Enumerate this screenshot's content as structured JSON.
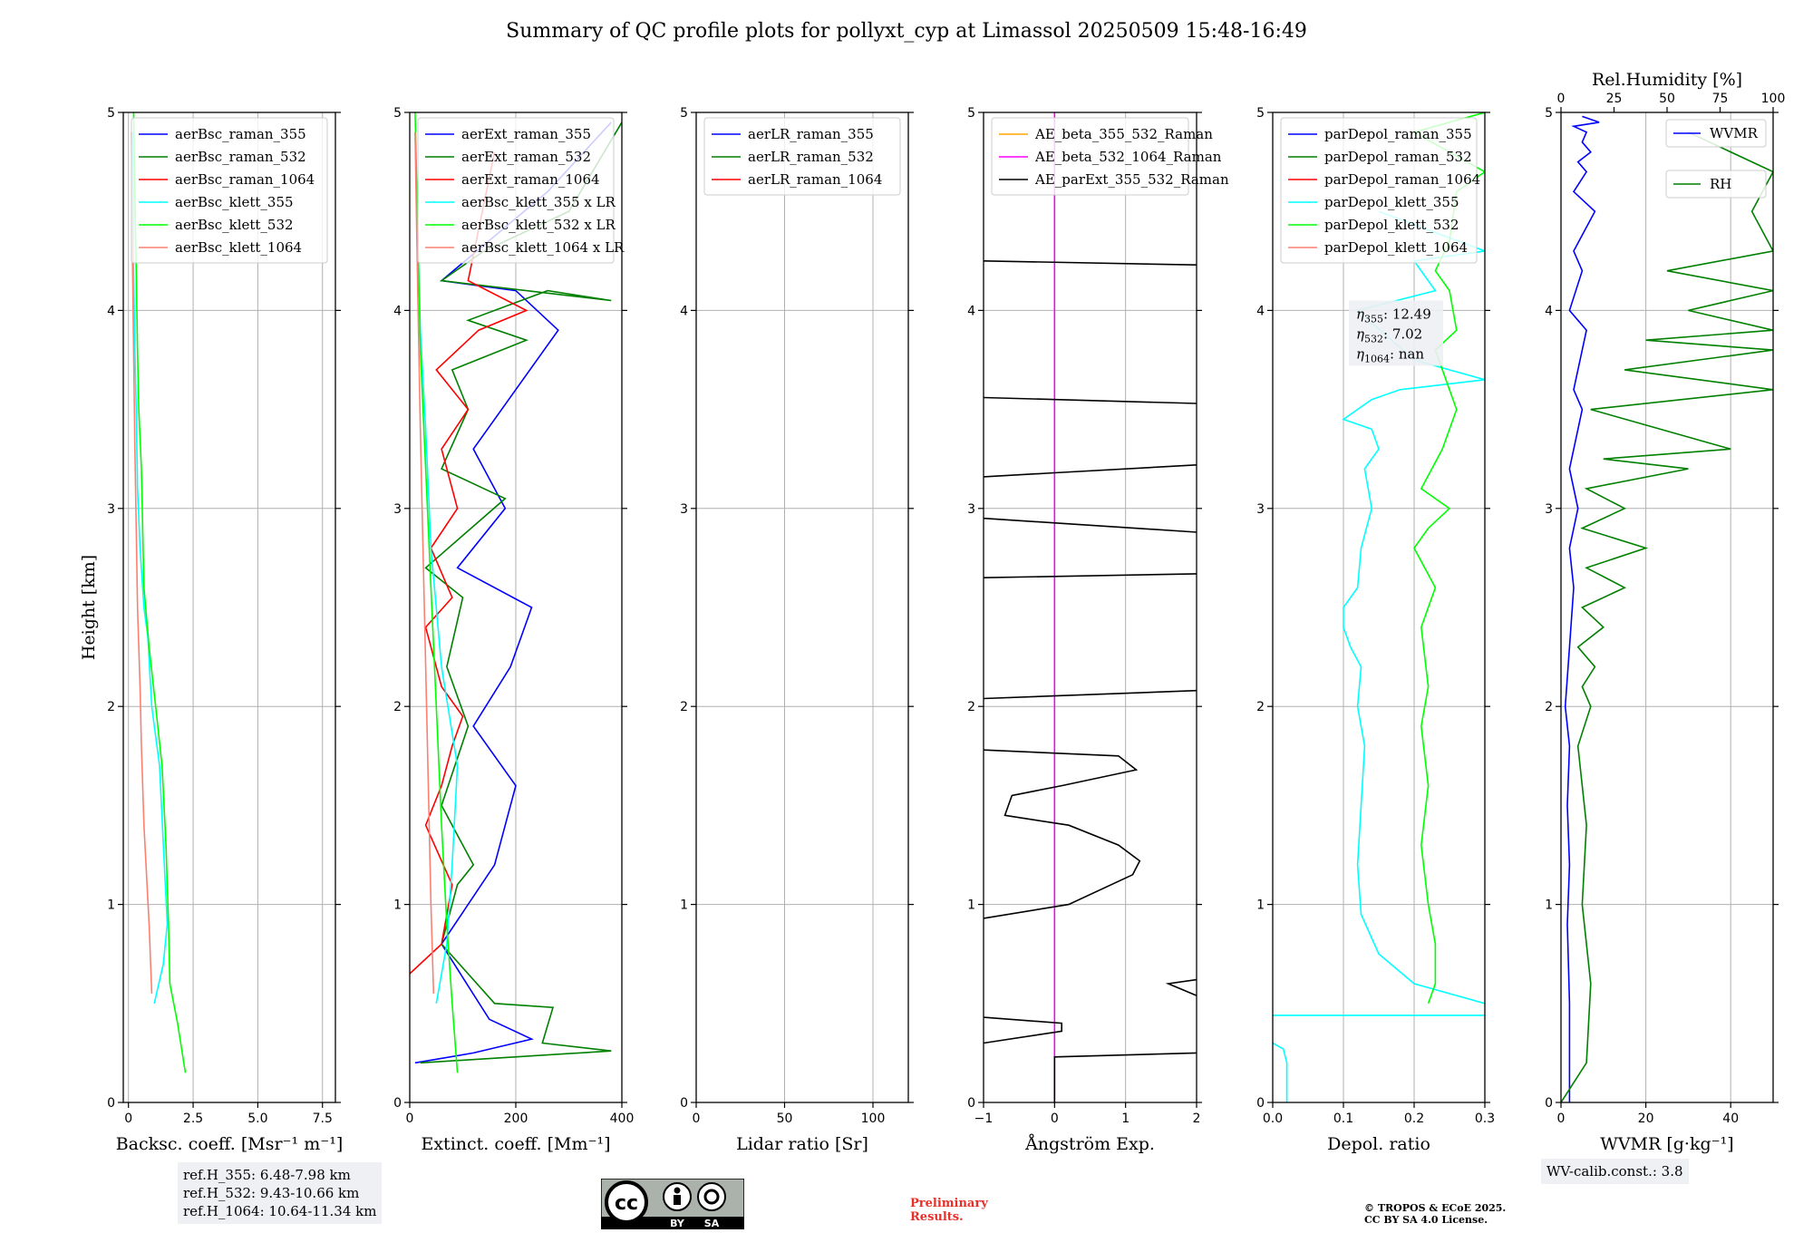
{
  "title": "Summary of QC profile plots for pollyxt_cyp at Limassol 20250509 15:48-16:49",
  "ylabel": "Height [km]",
  "info": {
    "ref_lines": [
      "ref.H_355: 6.48-7.98 km",
      "ref.H_532: 9.43-10.66 km",
      "ref.H_1064: 10.64-11.34 km"
    ],
    "wv_calib": "WV-calib.const.: 3.8",
    "preliminary": [
      "Preliminary",
      "Results."
    ],
    "copyright": [
      "© TROPOS & ECoE 2025.",
      "CC BY SA 4.0 License."
    ],
    "cc_labels": [
      "cc",
      "BY",
      "SA"
    ],
    "colors": {
      "blue": "#0000ff",
      "green": "#008000",
      "red": "#ff0000",
      "cyan": "#00ffff",
      "lime": "#00ff00",
      "salmon": "#fa8072",
      "orange": "#ffa500",
      "magenta": "#ff00ff",
      "black": "#000000"
    }
  },
  "chart_data": [
    {
      "type": "line",
      "id": "bsc",
      "xlabel": "Backsc. coeff. [Msr⁻¹ m⁻¹]",
      "xlim": [
        -0.2,
        8
      ],
      "xticks": [
        0,
        2.5,
        5,
        7.5
      ],
      "xticklabels": [
        "0",
        "2.5",
        "5.0",
        "7.5"
      ],
      "ylim": [
        0,
        5
      ],
      "yticks": [
        0,
        1,
        2,
        3,
        4,
        5
      ],
      "legend": "upper-right",
      "series": [
        {
          "name": "aerBsc_raman_355",
          "color": "blue",
          "x": [],
          "y": []
        },
        {
          "name": "aerBsc_raman_532",
          "color": "green",
          "x": [],
          "y": []
        },
        {
          "name": "aerBsc_raman_1064",
          "color": "red",
          "x": [],
          "y": []
        },
        {
          "name": "aerBsc_klett_355",
          "color": "cyan",
          "x": [
            1.0,
            1.35,
            1.5,
            1.35,
            1.2,
            0.9,
            0.75,
            0.6,
            0.45,
            0.35,
            0.3,
            0.25,
            0.2,
            0.2,
            0.15
          ],
          "y": [
            0.5,
            0.7,
            0.9,
            1.3,
            1.7,
            2.0,
            2.35,
            2.5,
            2.8,
            3.1,
            3.5,
            3.8,
            4.2,
            4.6,
            4.9
          ]
        },
        {
          "name": "aerBsc_klett_532",
          "color": "lime",
          "x": [
            2.2,
            1.9,
            1.6,
            1.55,
            1.45,
            1.3,
            1.05,
            0.8,
            0.6,
            0.55,
            0.5,
            0.4,
            0.35,
            0.3,
            0.25,
            0.2
          ],
          "y": [
            0.15,
            0.4,
            0.6,
            0.9,
            1.3,
            1.7,
            2.0,
            2.3,
            2.6,
            2.9,
            3.2,
            3.5,
            3.8,
            4.2,
            4.6,
            5.0
          ]
        },
        {
          "name": "aerBsc_klett_1064",
          "color": "salmon",
          "x": [
            0.9,
            0.8,
            0.6,
            0.5,
            0.45,
            0.35,
            0.3,
            0.25,
            0.2,
            0.15,
            0.12
          ],
          "y": [
            0.55,
            0.9,
            1.4,
            1.8,
            2.1,
            2.5,
            2.9,
            3.3,
            3.8,
            4.3,
            4.9
          ]
        }
      ]
    },
    {
      "type": "line",
      "id": "ext",
      "xlabel": "Extinct. coeff. [Mm⁻¹]",
      "xlim": [
        0,
        400
      ],
      "xticks": [
        0,
        200,
        400
      ],
      "xticklabels": [
        "0",
        "200",
        "400"
      ],
      "ylim": [
        0,
        5
      ],
      "yticks": [
        0,
        1,
        2,
        3,
        4,
        5
      ],
      "legend": "upper-right",
      "series": [
        {
          "name": "aerExt_raman_355",
          "color": "blue",
          "x": [
            10,
            120,
            230,
            150,
            60,
            110,
            160,
            200,
            120,
            190,
            230,
            90,
            180,
            120,
            280,
            200,
            60,
            260,
            380
          ],
          "y": [
            0.2,
            0.25,
            0.32,
            0.42,
            0.8,
            1.0,
            1.2,
            1.6,
            1.9,
            2.2,
            2.5,
            2.7,
            3.0,
            3.3,
            3.9,
            4.1,
            4.15,
            4.6,
            4.95
          ]
        },
        {
          "name": "aerExt_raman_532",
          "color": "green",
          "x": [
            20,
            380,
            250,
            270,
            160,
            60,
            90,
            120,
            60,
            110,
            70,
            100,
            30,
            180,
            60,
            110,
            80,
            220,
            110,
            260,
            380,
            60,
            140,
            300,
            400
          ],
          "y": [
            0.2,
            0.26,
            0.3,
            0.48,
            0.5,
            0.8,
            1.1,
            1.2,
            1.5,
            1.9,
            2.2,
            2.55,
            2.7,
            3.05,
            3.2,
            3.5,
            3.7,
            3.85,
            3.95,
            4.1,
            4.05,
            4.15,
            4.3,
            4.5,
            4.95
          ]
        },
        {
          "name": "aerExt_raman_1064",
          "color": "red",
          "x": [
            0,
            60,
            80,
            30,
            60,
            80,
            100,
            60,
            30,
            80,
            40,
            90,
            60,
            110,
            50,
            130,
            220,
            110,
            160
          ],
          "y": [
            0.65,
            0.8,
            1.1,
            1.4,
            1.6,
            1.8,
            1.95,
            2.1,
            2.4,
            2.55,
            2.8,
            3.0,
            3.3,
            3.5,
            3.7,
            3.9,
            4.0,
            4.15,
            4.8
          ]
        },
        {
          "name": "aerBsc_klett_355 x LR",
          "color": "cyan",
          "x": [
            50,
            70,
            80,
            90,
            60,
            40,
            30,
            20,
            15,
            10
          ],
          "y": [
            0.5,
            0.8,
            1.2,
            1.7,
            2.2,
            2.8,
            3.4,
            3.9,
            4.4,
            4.9
          ]
        },
        {
          "name": "aerBsc_klett_532 x LR",
          "color": "lime",
          "x": [
            90,
            80,
            70,
            60,
            50,
            40,
            30,
            20,
            15,
            10
          ],
          "y": [
            0.15,
            0.5,
            0.9,
            1.4,
            2.0,
            2.6,
            3.2,
            3.8,
            4.4,
            5.0
          ]
        },
        {
          "name": "aerBsc_klett_1064 x LR",
          "color": "salmon",
          "x": [
            45,
            40,
            35,
            30,
            25,
            20,
            15,
            10
          ],
          "y": [
            0.55,
            1.0,
            1.6,
            2.2,
            2.8,
            3.4,
            4.1,
            4.9
          ]
        }
      ]
    },
    {
      "type": "line",
      "id": "lr",
      "xlabel": "Lidar ratio [Sr]",
      "xlim": [
        0,
        120
      ],
      "xticks": [
        0,
        50,
        100
      ],
      "xticklabels": [
        "0",
        "50",
        "100"
      ],
      "ylim": [
        0,
        5
      ],
      "yticks": [
        0,
        1,
        2,
        3,
        4,
        5
      ],
      "legend": "upper-right",
      "series": [
        {
          "name": "aerLR_raman_355",
          "color": "blue",
          "x": [],
          "y": []
        },
        {
          "name": "aerLR_raman_532",
          "color": "green",
          "x": [],
          "y": []
        },
        {
          "name": "aerLR_raman_1064",
          "color": "red",
          "x": [],
          "y": []
        }
      ]
    },
    {
      "type": "line",
      "id": "ae",
      "xlabel": "Ångström Exp.",
      "xlim": [
        -1,
        2
      ],
      "xticks": [
        -1,
        0,
        1,
        2
      ],
      "xticklabels": [
        "−1",
        "0",
        "1",
        "2"
      ],
      "ylim": [
        0,
        5
      ],
      "yticks": [
        0,
        1,
        2,
        3,
        4,
        5
      ],
      "legend": "upper-right",
      "series": [
        {
          "name": "AE_beta_355_532_Raman",
          "color": "orange",
          "x": [],
          "y": []
        },
        {
          "name": "AE_beta_532_1064_Raman",
          "color": "magenta",
          "x": [
            0,
            0
          ],
          "y": [
            0,
            5
          ]
        },
        {
          "name": "AE_parExt_355_532_Raman",
          "color": "black",
          "segments": [
            {
              "x": [
                0,
                0,
                2
              ],
              "y": [
                0,
                0.23,
                0.25
              ]
            },
            {
              "x": [
                -1,
                0.1,
                0.1,
                -1
              ],
              "y": [
                0.3,
                0.36,
                0.4,
                0.43
              ]
            },
            {
              "x": [
                2,
                1.6,
                2
              ],
              "y": [
                0.54,
                0.6,
                0.62
              ]
            },
            {
              "x": [
                -1,
                0.2,
                1.1,
                1.2,
                0.9,
                0.2,
                -0.7,
                -0.6,
                0.1,
                1.15,
                0.9,
                -1
              ],
              "y": [
                0.93,
                1.0,
                1.15,
                1.22,
                1.3,
                1.4,
                1.45,
                1.55,
                1.6,
                1.68,
                1.75,
                1.78
              ]
            },
            {
              "x": [
                -1,
                2
              ],
              "y": [
                2.04,
                2.08
              ]
            },
            {
              "x": [
                -1,
                2
              ],
              "y": [
                2.65,
                2.67
              ]
            },
            {
              "x": [
                -1,
                0.3,
                2
              ],
              "y": [
                2.95,
                2.92,
                2.88
              ]
            },
            {
              "x": [
                -1,
                0,
                2
              ],
              "y": [
                3.16,
                3.18,
                3.22
              ]
            },
            {
              "x": [
                -1,
                2
              ],
              "y": [
                3.56,
                3.53
              ]
            },
            {
              "x": [
                -1,
                2
              ],
              "y": [
                4.25,
                4.23
              ]
            }
          ]
        }
      ]
    },
    {
      "type": "line",
      "id": "depol",
      "xlabel": "Depol. ratio",
      "xlim": [
        0,
        0.3
      ],
      "xticks": [
        0,
        0.1,
        0.2,
        0.3
      ],
      "xticklabels": [
        "0.0",
        "0.1",
        "0.2",
        "0.3"
      ],
      "ylim": [
        0,
        5
      ],
      "yticks": [
        0,
        1,
        2,
        3,
        4,
        5
      ],
      "legend": "upper-right",
      "annotation": {
        "lines": [
          [
            "η",
            "355",
            ": 12.49"
          ],
          [
            "η",
            "532",
            ": 7.02"
          ],
          [
            "η",
            "1064",
            ": nan"
          ]
        ]
      },
      "series": [
        {
          "name": "parDepol_raman_355",
          "color": "blue",
          "x": [],
          "y": []
        },
        {
          "name": "parDepol_raman_532",
          "color": "green",
          "x": [],
          "y": []
        },
        {
          "name": "parDepol_raman_1064",
          "color": "red",
          "x": [],
          "y": []
        },
        {
          "name": "parDepol_klett_355",
          "color": "cyan",
          "segments": [
            {
              "x": [
                0.02,
                0.02,
                0.015,
                0.0
              ],
              "y": [
                0.0,
                0.2,
                0.27,
                0.3
              ]
            },
            {
              "x": [
                0.0,
                0.3
              ],
              "y": [
                0.44,
                0.44
              ]
            },
            {
              "x": [
                0.3,
                0.2,
                0.15,
                0.125,
                0.12,
                0.125,
                0.13,
                0.12,
                0.125,
                0.11,
                0.1,
                0.1,
                0.12,
                0.125,
                0.14,
                0.13,
                0.15,
                0.14,
                0.1,
                0.14,
                0.18,
                0.3,
                0.2,
                0.12,
                0.23,
                0.2,
                0.3,
                0.15
              ],
              "y": [
                0.5,
                0.6,
                0.75,
                0.95,
                1.2,
                1.5,
                1.8,
                2.0,
                2.2,
                2.3,
                2.4,
                2.5,
                2.6,
                2.8,
                3.0,
                3.2,
                3.3,
                3.4,
                3.45,
                3.55,
                3.6,
                3.65,
                3.75,
                4.0,
                4.1,
                4.25,
                4.3,
                4.5
              ]
            }
          ]
        },
        {
          "name": "parDepol_klett_532",
          "color": "lime",
          "x": [
            0.22,
            0.23,
            0.23,
            0.22,
            0.21,
            0.22,
            0.21,
            0.22,
            0.21,
            0.23,
            0.2,
            0.22,
            0.25,
            0.21,
            0.24,
            0.26,
            0.25,
            0.23,
            0.26,
            0.25,
            0.23,
            0.25,
            0.26,
            0.3,
            0.2,
            0.3
          ],
          "y": [
            0.5,
            0.6,
            0.8,
            1.0,
            1.3,
            1.6,
            1.9,
            2.1,
            2.4,
            2.6,
            2.8,
            2.9,
            3.0,
            3.1,
            3.3,
            3.5,
            3.6,
            3.8,
            3.9,
            4.1,
            4.2,
            4.35,
            4.6,
            4.7,
            4.9,
            5.0
          ]
        },
        {
          "name": "parDepol_klett_1064",
          "color": "salmon",
          "x": [],
          "y": []
        }
      ]
    },
    {
      "type": "line",
      "id": "wv",
      "xlabel": "WVMR [g·kg⁻¹]",
      "xlim": [
        0,
        50
      ],
      "xticks": [
        0,
        20,
        40
      ],
      "xticklabels": [
        "0",
        "20",
        "40"
      ],
      "ylim": [
        0,
        5
      ],
      "yticks": [
        0,
        1,
        2,
        3,
        4,
        5
      ],
      "top_axis": {
        "label": "Rel.Humidity [%]",
        "xlim": [
          0,
          100
        ],
        "xticks": [
          0,
          25,
          50,
          75,
          100
        ],
        "xticklabels": [
          "0",
          "25",
          "50",
          "75",
          "100"
        ]
      },
      "legend": "upper-right",
      "series": [
        {
          "name": "WVMR",
          "color": "blue",
          "x": [
            2,
            2,
            1.5,
            2,
            1.5,
            2,
            1,
            2,
            3,
            2,
            4,
            2,
            5,
            3,
            6,
            2,
            5,
            3,
            8,
            3,
            6,
            4,
            7,
            5,
            6,
            3,
            9,
            5
          ],
          "y": [
            0.0,
            0.5,
            0.9,
            1.2,
            1.5,
            1.8,
            2.0,
            2.3,
            2.6,
            2.8,
            3.0,
            3.2,
            3.5,
            3.6,
            3.9,
            4.0,
            4.2,
            4.3,
            4.5,
            4.6,
            4.7,
            4.75,
            4.8,
            4.85,
            4.9,
            4.93,
            4.95,
            4.98
          ]
        },
        {
          "name": "RH",
          "color": "green",
          "rh": true,
          "x": [
            0,
            12,
            14,
            10,
            12,
            8,
            14,
            10,
            16,
            8,
            20,
            10,
            30,
            12,
            40,
            10,
            30,
            12,
            60,
            20,
            80,
            14,
            100,
            30,
            100,
            40,
            100,
            60,
            100,
            50,
            100,
            90,
            100,
            60
          ],
          "y": [
            0.0,
            0.2,
            0.6,
            1.0,
            1.4,
            1.8,
            2.0,
            2.1,
            2.2,
            2.3,
            2.4,
            2.5,
            2.6,
            2.7,
            2.8,
            2.9,
            3.0,
            3.1,
            3.2,
            3.25,
            3.3,
            3.5,
            3.6,
            3.7,
            3.8,
            3.85,
            3.9,
            4.0,
            4.1,
            4.2,
            4.3,
            4.5,
            4.7,
            4.9
          ]
        }
      ]
    }
  ]
}
